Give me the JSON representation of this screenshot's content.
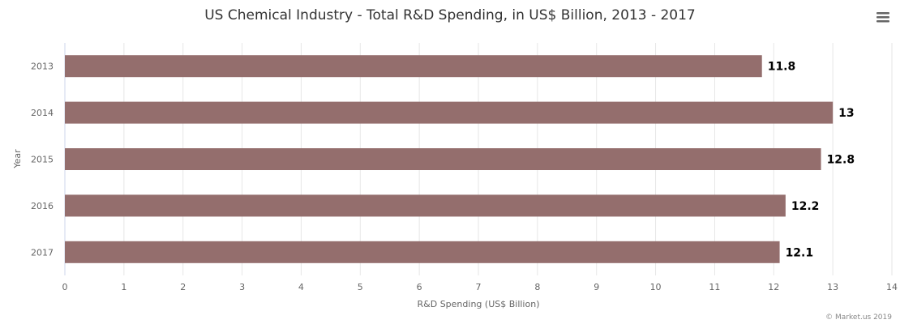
{
  "chart_data": {
    "type": "bar",
    "orientation": "horizontal",
    "title": "US Chemical Industry - Total R&D Spending, in US$ Billion, 2013 - 2017",
    "categories": [
      "2013",
      "2014",
      "2015",
      "2016",
      "2017"
    ],
    "values": [
      11.8,
      13,
      12.8,
      12.2,
      12.1
    ],
    "data_labels": [
      "11.8",
      "13",
      "12.8",
      "12.2",
      "12.1"
    ],
    "xlabel": "R&D Spending (US$ Billion)",
    "ylabel": "Year",
    "xlim": [
      0,
      14
    ],
    "xticks": [
      "0",
      "1",
      "2",
      "3",
      "4",
      "5",
      "6",
      "7",
      "8",
      "9",
      "10",
      "11",
      "12",
      "13",
      "14"
    ],
    "grid": true,
    "legend": "none",
    "bar_color": "#946e6d"
  },
  "credit": "© Market.us 2019",
  "menu_icon": "hamburger-menu-icon"
}
